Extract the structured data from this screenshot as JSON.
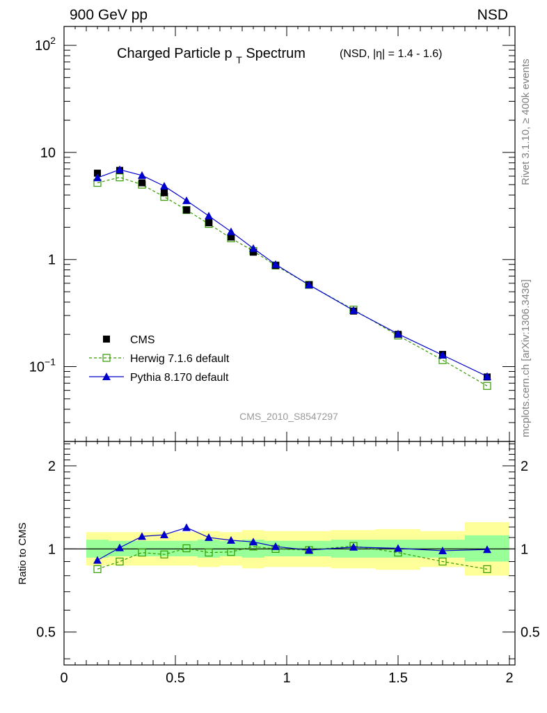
{
  "header": {
    "left": "900 GeV pp",
    "right": "NSD"
  },
  "side": {
    "rivet": "Rivet 3.1.10, ≥ 400k events",
    "mcplots": "mcplots.cern.ch [arXiv:1306.3436]"
  },
  "chart_data": {
    "type": "line",
    "title": "Charged Particle p",
    "title_sub": "T",
    "title_tail": " Spectrum",
    "subtitle": "(NSD, |η| = 1.4 - 1.6)",
    "analysis_label": "CMS_2010_S8547297",
    "xlim": [
      0,
      2
    ],
    "x_ticks": [
      {
        "v": 0,
        "label": "0"
      },
      {
        "v": 0.5,
        "label": "0.5"
      },
      {
        "v": 1,
        "label": "1"
      },
      {
        "v": 1.5,
        "label": "1.5"
      },
      {
        "v": 2,
        "label": "2"
      }
    ],
    "main": {
      "yscale": "log",
      "ylim": [
        0.02,
        150
      ],
      "y_ticks": [
        {
          "v": 0.1,
          "base": "10",
          "exp": "−1"
        },
        {
          "v": 1,
          "base": "1",
          "exp": ""
        },
        {
          "v": 10,
          "base": "10",
          "exp": ""
        },
        {
          "v": 100,
          "base": "10",
          "exp": "2"
        }
      ],
      "legend": {
        "placement": "bottom-left",
        "entries": [
          "CMS",
          "Herwig 7.1.6 default",
          "Pythia 8.170 default"
        ]
      },
      "series": [
        {
          "name": "CMS",
          "color": "#000000",
          "marker": "square-filled",
          "x": [
            0.15,
            0.25,
            0.35,
            0.45,
            0.55,
            0.65,
            0.75,
            0.85,
            0.95,
            1.1,
            1.3,
            1.5,
            1.7,
            1.9
          ],
          "y": [
            6.4,
            6.8,
            5.2,
            4.2,
            2.9,
            2.2,
            1.62,
            1.17,
            0.88,
            0.58,
            0.33,
            0.2,
            0.13,
            0.08
          ]
        },
        {
          "name": "Herwig 7.1.6 default",
          "color": "#339900",
          "marker": "square-open",
          "dashed": true,
          "x": [
            0.15,
            0.25,
            0.35,
            0.45,
            0.55,
            0.65,
            0.75,
            0.85,
            0.95,
            1.1,
            1.3,
            1.5,
            1.7,
            1.9
          ],
          "y": [
            5.2,
            5.85,
            5.0,
            3.85,
            2.9,
            2.15,
            1.58,
            1.2,
            0.88,
            0.58,
            0.34,
            0.195,
            0.115,
            0.066
          ]
        },
        {
          "name": "Pythia 8.170 default",
          "color": "#0000cc",
          "marker": "triangle-filled",
          "x": [
            0.15,
            0.25,
            0.35,
            0.45,
            0.55,
            0.65,
            0.75,
            0.85,
            0.95,
            1.1,
            1.3,
            1.5,
            1.7,
            1.9
          ],
          "y": [
            5.8,
            6.9,
            6.1,
            4.85,
            3.55,
            2.55,
            1.82,
            1.27,
            0.9,
            0.58,
            0.335,
            0.202,
            0.128,
            0.081
          ]
        }
      ]
    },
    "ratio": {
      "ylabel": "Ratio to CMS",
      "yscale": "log",
      "ylim": [
        0.38,
        2.45
      ],
      "y_ticks": [
        {
          "v": 0.5,
          "label": "0.5"
        },
        {
          "v": 1,
          "label": "1"
        },
        {
          "v": 2,
          "label": "2"
        }
      ],
      "bands": {
        "x_edges": [
          0.1,
          0.2,
          0.3,
          0.4,
          0.5,
          0.6,
          0.7,
          0.8,
          0.9,
          1.0,
          1.2,
          1.4,
          1.6,
          1.8,
          2.0
        ],
        "stat_lo": [
          0.93,
          0.94,
          0.94,
          0.94,
          0.94,
          0.93,
          0.94,
          0.93,
          0.94,
          0.94,
          0.93,
          0.93,
          0.93,
          0.9
        ],
        "stat_hi": [
          1.08,
          1.07,
          1.07,
          1.07,
          1.07,
          1.08,
          1.07,
          1.08,
          1.07,
          1.07,
          1.08,
          1.08,
          1.08,
          1.12
        ],
        "total_lo": [
          0.87,
          0.87,
          0.87,
          0.87,
          0.87,
          0.86,
          0.87,
          0.85,
          0.86,
          0.86,
          0.85,
          0.84,
          0.86,
          0.8
        ],
        "total_hi": [
          1.15,
          1.15,
          1.15,
          1.15,
          1.15,
          1.16,
          1.15,
          1.17,
          1.16,
          1.16,
          1.17,
          1.18,
          1.16,
          1.25
        ]
      },
      "series": [
        {
          "name": "Herwig 7.1.6 default",
          "color": "#339900",
          "marker": "square-open",
          "dashed": true,
          "x": [
            0.15,
            0.25,
            0.35,
            0.45,
            0.55,
            0.65,
            0.75,
            0.85,
            0.95,
            1.1,
            1.3,
            1.5,
            1.7,
            1.9
          ],
          "y": [
            0.845,
            0.9,
            0.97,
            0.955,
            1.005,
            0.97,
            0.975,
            1.02,
            1.0,
            0.99,
            1.025,
            0.97,
            0.9,
            0.845
          ]
        },
        {
          "name": "Pythia 8.170 default",
          "color": "#0000cc",
          "marker": "triangle-filled",
          "x": [
            0.15,
            0.25,
            0.35,
            0.45,
            0.55,
            0.65,
            0.75,
            0.85,
            0.95,
            1.1,
            1.3,
            1.5,
            1.7,
            1.9
          ],
          "y": [
            0.91,
            1.01,
            1.11,
            1.125,
            1.195,
            1.1,
            1.075,
            1.06,
            1.02,
            0.99,
            1.015,
            1.005,
            0.985,
            0.995
          ]
        }
      ]
    }
  }
}
